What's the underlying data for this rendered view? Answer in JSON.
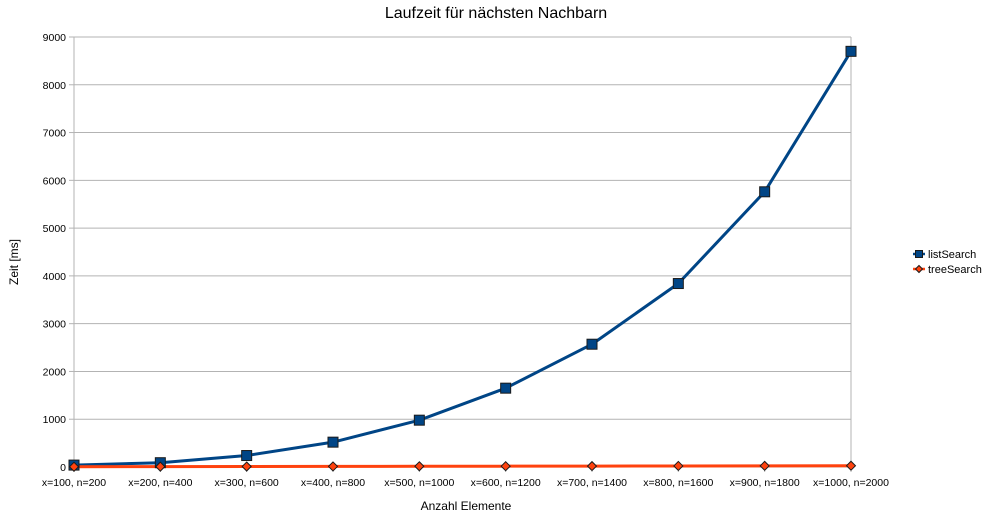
{
  "chart_data": {
    "type": "line",
    "title": "Laufzeit für nächsten Nachbarn",
    "xlabel": "Anzahl Elemente",
    "ylabel": "Zeit [ms]",
    "categories": [
      "x=100, n=200",
      "x=200, n=400",
      "x=300, n=600",
      "x=400, n=800",
      "x=500, n=1000",
      "x=600, n=1200",
      "x=700, n=1400",
      "x=800, n=1600",
      "x=900, n=1800",
      "x=1000, n=2000"
    ],
    "ylim": [
      0,
      9000
    ],
    "yticks": [
      0,
      1000,
      2000,
      3000,
      4000,
      5000,
      6000,
      7000,
      8000,
      9000
    ],
    "grid": true,
    "legend_position": "right",
    "series": [
      {
        "name": "listSearch",
        "color": "#004586",
        "marker": "square",
        "values": [
          40,
          90,
          240,
          520,
          980,
          1650,
          2570,
          3840,
          5760,
          8700
        ]
      },
      {
        "name": "treeSearch",
        "color": "#ff420e",
        "marker": "diamond",
        "values": [
          5,
          8,
          10,
          12,
          15,
          17,
          19,
          22,
          24,
          27
        ]
      }
    ]
  }
}
